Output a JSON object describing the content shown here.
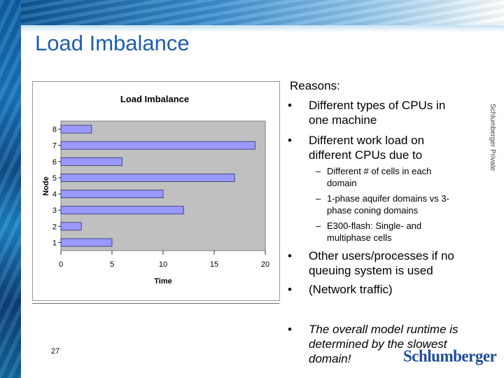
{
  "slide": {
    "title": "Load Imbalance",
    "page_number": "27",
    "side_label": "Schlumberger Private",
    "logo_text": "Schlumberger"
  },
  "reasons": {
    "heading": "Reasons:",
    "bullets": [
      {
        "marker": "•",
        "text_lines": [
          "Different types of CPUs in",
          "one machine"
        ]
      },
      {
        "marker": "•",
        "text_lines": [
          "Different work load on",
          "different CPUs due to"
        ],
        "sub": [
          {
            "marker": "–",
            "text_lines": [
              "Different # of cells in each",
              "domain"
            ]
          },
          {
            "marker": "–",
            "text_lines": [
              "1-phase aquifer domains vs 3-",
              "phase coning domains"
            ]
          },
          {
            "marker": "–",
            "text_lines": [
              "E300-flash: Single- and",
              "multiphase cells"
            ]
          }
        ]
      },
      {
        "marker": "•",
        "text_lines": [
          "Other users/processes if no",
          "queuing system is used"
        ]
      },
      {
        "marker": "•",
        "text_lines": [
          "(Network traffic)"
        ]
      },
      {
        "marker": "•",
        "text_lines": [
          "The overall model runtime is",
          "determined by the slowest",
          "domain!"
        ]
      }
    ]
  },
  "chart_data": {
    "type": "bar",
    "orientation": "horizontal",
    "title": "Load Imbalance",
    "xlabel": "Time",
    "ylabel": "Node",
    "categories": [
      "1",
      "2",
      "3",
      "4",
      "5",
      "6",
      "7",
      "8"
    ],
    "values": [
      5,
      2,
      12,
      10,
      17,
      6,
      19,
      3
    ],
    "xlim": [
      0,
      20
    ],
    "xticks": [
      "0",
      "5",
      "10",
      "15",
      "20"
    ],
    "grid": false,
    "legend": "none",
    "colors": {
      "bar_fill": "#9999ff",
      "bar_stroke": "#333366",
      "plot_bg": "#c0c0c0"
    }
  }
}
